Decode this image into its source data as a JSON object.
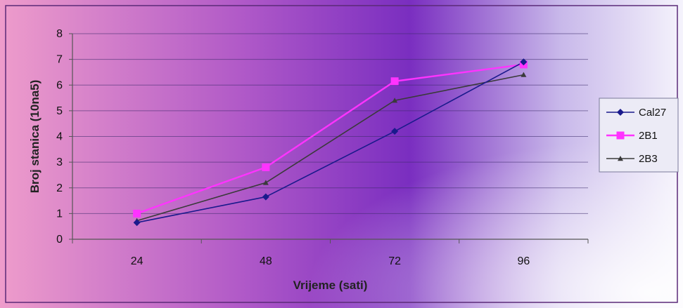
{
  "chart_data": {
    "type": "line",
    "x": [
      24,
      48,
      72,
      96
    ],
    "categories": [
      "24",
      "48",
      "72",
      "96"
    ],
    "xlabel": "Vrijeme (sati)",
    "ylabel": "Broj stanica (10na5)",
    "ylim": [
      0,
      8
    ],
    "yticks": [
      0,
      1,
      2,
      3,
      4,
      5,
      6,
      7,
      8
    ],
    "grid": true,
    "legend_position": "right",
    "series": [
      {
        "name": "Cal27",
        "values": [
          0.65,
          1.65,
          4.2,
          6.9
        ],
        "color": "#1a1a8c",
        "marker": "diamond"
      },
      {
        "name": "2B1",
        "values": [
          1.0,
          2.8,
          6.15,
          6.8
        ],
        "color": "#ff33ff",
        "marker": "square"
      },
      {
        "name": "2B3",
        "values": [
          0.72,
          2.2,
          5.4,
          6.4
        ],
        "color": "#3a3a3a",
        "marker": "triangle"
      }
    ],
    "colors": {
      "background_start": "#ee8fc0",
      "background_mid": "#7d2fbf",
      "background_end": "#f2f0fb",
      "gridline": "#3a2a6a",
      "axis": "#555555"
    }
  }
}
